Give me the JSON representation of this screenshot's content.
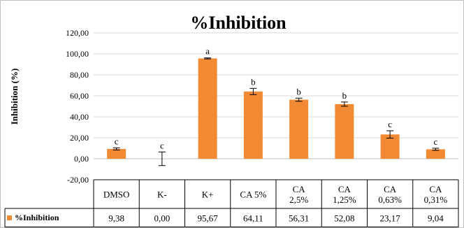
{
  "chart_data": {
    "type": "bar",
    "title": "%Inhibition",
    "ylabel": "Inhibition (%)",
    "xlabel": "",
    "ylim": [
      -20,
      120
    ],
    "yticks": [
      "-20,00",
      "0,00",
      "20,00",
      "40,00",
      "60,00",
      "80,00",
      "100,00",
      "120,00"
    ],
    "grid": true,
    "bar_color": "#f28a33",
    "categories": [
      [
        "DMSO"
      ],
      [
        "K-"
      ],
      [
        "K+"
      ],
      [
        "CA 5%"
      ],
      [
        "CA",
        "2,5%"
      ],
      [
        "CA",
        "1,25%"
      ],
      [
        "CA",
        "0,63%"
      ],
      [
        "CA",
        "0,31%"
      ]
    ],
    "series": [
      {
        "name": "%Inhibition",
        "values": [
          9.38,
          0.0,
          95.67,
          64.11,
          56.31,
          52.08,
          23.17,
          9.04
        ],
        "value_labels": [
          "9,38",
          "0,00",
          "95,67",
          "64,11",
          "56,31",
          "52,08",
          "23,17",
          "9,04"
        ],
        "errors": [
          1.0,
          6.5,
          0.5,
          3.0,
          1.5,
          2.0,
          3.5,
          1.0
        ],
        "significance": [
          "c",
          "c",
          "a",
          "b",
          "b",
          "b",
          "c",
          "c"
        ]
      }
    ]
  }
}
